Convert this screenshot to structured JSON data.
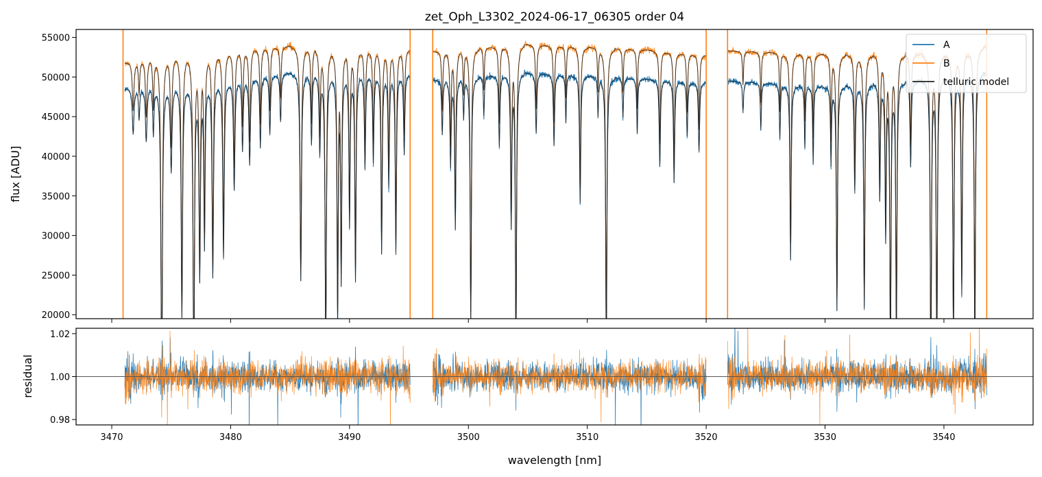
{
  "chart_data": {
    "title": "zet_Oph_L3302_2024-06-17_06305  order 04",
    "xlabel": "wavelength [nm]",
    "colors": {
      "A": "#1f77b4",
      "B": "#ff7f0e",
      "model": "#222222",
      "ref_line": "#555555"
    },
    "x_range": [
      3467.0,
      3547.5
    ],
    "x_ticks": [
      3470,
      3480,
      3490,
      3500,
      3510,
      3520,
      3530,
      3540
    ],
    "x_tick_labels": [
      "3470",
      "3480",
      "3490",
      "3500",
      "3510",
      "3520",
      "3530",
      "3540"
    ],
    "gaps": [
      [
        3471.0,
        3471.1
      ],
      [
        3495.1,
        3497.0
      ],
      [
        3520.0,
        3521.8
      ]
    ],
    "segments": [
      [
        3471.1,
        3495.1
      ],
      [
        3497.0,
        3520.0
      ],
      [
        3521.8,
        3543.6
      ]
    ],
    "spike_lines": [
      3470.95,
      3495.1,
      3497.0,
      3520.0,
      3521.8,
      3543.6
    ],
    "top_panel": {
      "type": "line",
      "ylabel": "flux [ADU]",
      "ylim": [
        19500,
        56000
      ],
      "y_ticks": [
        20000,
        25000,
        30000,
        35000,
        40000,
        45000,
        50000,
        55000
      ],
      "y_tick_labels": [
        "20000",
        "25000",
        "30000",
        "35000",
        "40000",
        "45000",
        "50000",
        "55000"
      ],
      "series": [
        {
          "name": "A",
          "continuum": [
            [
              3471.1,
              48500
            ],
            [
              3480,
              49500
            ],
            [
              3485,
              50500
            ],
            [
              3495,
              50300
            ],
            [
              3497,
              49600
            ],
            [
              3505,
              50500
            ],
            [
              3515,
              49700
            ],
            [
              3520,
              49300
            ],
            [
              3521.8,
              49500
            ],
            [
              3530,
              48700
            ],
            [
              3540,
              49800
            ],
            [
              3543.6,
              50500
            ]
          ]
        },
        {
          "name": "B",
          "continuum": [
            [
              3471.1,
              51800
            ],
            [
              3475,
              53000
            ],
            [
              3480,
              53500
            ],
            [
              3485,
              53900
            ],
            [
              3495,
              53500
            ],
            [
              3497,
              53200
            ],
            [
              3505,
              54100
            ],
            [
              3515,
              53400
            ],
            [
              3520,
              52800
            ],
            [
              3521.8,
              53300
            ],
            [
              3530,
              52800
            ],
            [
              3540,
              52900
            ],
            [
              3543.6,
              53800
            ]
          ]
        },
        {
          "name": "telluric model"
        }
      ],
      "absorption_lines": [
        [
          3471.8,
          0.12,
          0.08
        ],
        [
          3472.3,
          0.08,
          0.06
        ],
        [
          3472.9,
          0.14,
          0.08
        ],
        [
          3473.5,
          0.12,
          0.06
        ],
        [
          3474.2,
          0.82,
          0.07
        ],
        [
          3475.0,
          0.22,
          0.08
        ],
        [
          3475.9,
          0.6,
          0.07
        ],
        [
          3476.9,
          0.78,
          0.07
        ],
        [
          3477.4,
          0.5,
          0.07
        ],
        [
          3477.8,
          0.42,
          0.06
        ],
        [
          3478.5,
          0.5,
          0.07
        ],
        [
          3479.4,
          0.45,
          0.07
        ],
        [
          3480.3,
          0.28,
          0.07
        ],
        [
          3481.0,
          0.18,
          0.06
        ],
        [
          3481.6,
          0.22,
          0.07
        ],
        [
          3482.5,
          0.18,
          0.06
        ],
        [
          3483.3,
          0.15,
          0.06
        ],
        [
          3484.2,
          0.12,
          0.06
        ],
        [
          3485.9,
          0.52,
          0.07
        ],
        [
          3486.8,
          0.18,
          0.06
        ],
        [
          3487.5,
          0.2,
          0.06
        ],
        [
          3488.0,
          0.68,
          0.07
        ],
        [
          3489.0,
          0.62,
          0.06
        ],
        [
          3489.3,
          0.52,
          0.06
        ],
        [
          3490.0,
          0.38,
          0.06
        ],
        [
          3490.5,
          0.52,
          0.06
        ],
        [
          3491.3,
          0.24,
          0.06
        ],
        [
          3492.0,
          0.22,
          0.06
        ],
        [
          3492.7,
          0.45,
          0.06
        ],
        [
          3493.3,
          0.28,
          0.06
        ],
        [
          3493.9,
          0.45,
          0.06
        ],
        [
          3494.6,
          0.2,
          0.06
        ],
        [
          3497.8,
          0.14,
          0.06
        ],
        [
          3498.5,
          0.22,
          0.06
        ],
        [
          3498.9,
          0.38,
          0.06
        ],
        [
          3499.6,
          0.1,
          0.05
        ],
        [
          3500.2,
          0.62,
          0.06
        ],
        [
          3501.3,
          0.1,
          0.05
        ],
        [
          3502.6,
          0.18,
          0.06
        ],
        [
          3503.6,
          0.38,
          0.06
        ],
        [
          3504.0,
          0.7,
          0.06
        ],
        [
          3505.7,
          0.15,
          0.06
        ],
        [
          3507.2,
          0.18,
          0.06
        ],
        [
          3508.2,
          0.12,
          0.05
        ],
        [
          3509.4,
          0.32,
          0.06
        ],
        [
          3510.9,
          0.1,
          0.05
        ],
        [
          3511.6,
          0.72,
          0.06
        ],
        [
          3513.0,
          0.1,
          0.05
        ],
        [
          3514.2,
          0.14,
          0.05
        ],
        [
          3516.1,
          0.22,
          0.06
        ],
        [
          3517.3,
          0.26,
          0.06
        ],
        [
          3518.4,
          0.14,
          0.06
        ],
        [
          3519.4,
          0.18,
          0.06
        ],
        [
          3523.1,
          0.08,
          0.05
        ],
        [
          3524.6,
          0.12,
          0.05
        ],
        [
          3526.2,
          0.14,
          0.05
        ],
        [
          3527.1,
          0.45,
          0.06
        ],
        [
          3528.3,
          0.16,
          0.05
        ],
        [
          3529.0,
          0.2,
          0.05
        ],
        [
          3530.5,
          0.2,
          0.05
        ],
        [
          3531.0,
          0.58,
          0.06
        ],
        [
          3532.5,
          0.28,
          0.06
        ],
        [
          3533.3,
          0.58,
          0.06
        ],
        [
          3534.6,
          0.3,
          0.06
        ],
        [
          3535.1,
          0.4,
          0.06
        ],
        [
          3535.5,
          0.72,
          0.06
        ],
        [
          3536.0,
          0.66,
          0.06
        ],
        [
          3537.2,
          0.22,
          0.06
        ],
        [
          3538.9,
          0.78,
          0.06
        ],
        [
          3539.4,
          0.74,
          0.06
        ],
        [
          3540.8,
          0.68,
          0.06
        ],
        [
          3541.5,
          0.55,
          0.06
        ],
        [
          3542.6,
          0.7,
          0.06
        ]
      ]
    },
    "bottom_panel": {
      "type": "line",
      "ylabel": "residual",
      "ylim": [
        0.9775,
        1.0225
      ],
      "y_ticks": [
        0.98,
        1.0,
        1.02
      ],
      "y_tick_labels": [
        "0.98",
        "1.00",
        "1.02"
      ],
      "reference_value": 1.0,
      "noise_sigma": 0.0065,
      "series": [
        {
          "name": "A"
        },
        {
          "name": "B"
        }
      ]
    },
    "legend": {
      "position": "top-right",
      "entries": [
        "A",
        "B",
        "telluric model"
      ]
    }
  }
}
